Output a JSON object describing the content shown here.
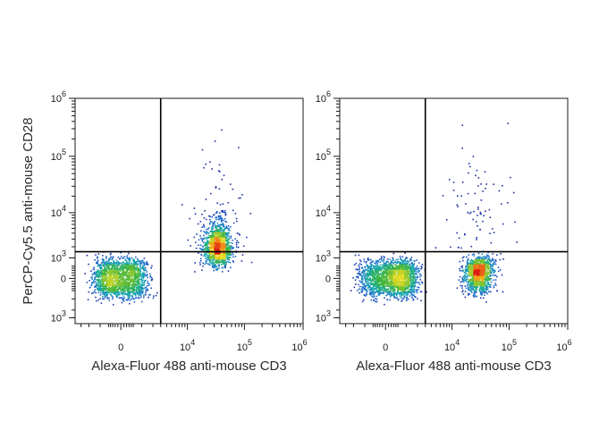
{
  "chart_data": [
    {
      "type": "scatter",
      "title": "",
      "xlabel": "Alexa-Fluor 488  anti-mouse  CD3",
      "ylabel": "PerCP-Cy5.5  anti-mouse  CD28",
      "xscale": "biexponential",
      "yscale": "biexponential",
      "xticks": [
        "0",
        "10^4",
        "10^5",
        "10^6"
      ],
      "yticks": [
        "10^3",
        "0",
        "10^3",
        "10^4",
        "10^5",
        "10^6"
      ],
      "quadrant_gate": {
        "x": 3000,
        "y": 1500
      },
      "color_scale": "density (blue-green-yellow-red)",
      "populations": [
        {
          "name": "",
          "x_center": 0,
          "y_center": 0,
          "n": 1600,
          "x_spread": 700,
          "y_spread": 450
        },
        {
          "name": "",
          "x_center": 35000,
          "y_center": 2000,
          "n": 1100,
          "x_spread": 0.13,
          "y_spread": 0.3
        },
        {
          "name": "",
          "x_center": 30000,
          "y_center": 10000,
          "n": 80,
          "x_spread": 0.25,
          "y_spread": 0.6
        }
      ]
    },
    {
      "type": "scatter",
      "title": "",
      "xlabel": "Alexa-Fluor 488  anti-mouse  CD3",
      "ylabel": "",
      "xscale": "biexponential",
      "yscale": "biexponential",
      "xticks": [
        "0",
        "10^4",
        "10^5",
        "10^6"
      ],
      "yticks": [
        "10^3",
        "0",
        "10^3",
        "10^4",
        "10^5",
        "10^6"
      ],
      "quadrant_gate": {
        "x": 3000,
        "y": 1500
      },
      "color_scale": "density (blue-green-yellow-red)",
      "populations": [
        {
          "name": "",
          "x_center": 300,
          "y_center": 0,
          "n": 1800,
          "x_spread": 800,
          "y_spread": 420
        },
        {
          "name": "",
          "x_center": 30000,
          "y_center": 200,
          "n": 1100,
          "x_spread": 0.13,
          "y_spread": 400
        },
        {
          "name": "",
          "x_center": 30000,
          "y_center": 8000,
          "n": 90,
          "x_spread": 0.25,
          "y_spread": 0.6
        }
      ]
    }
  ]
}
